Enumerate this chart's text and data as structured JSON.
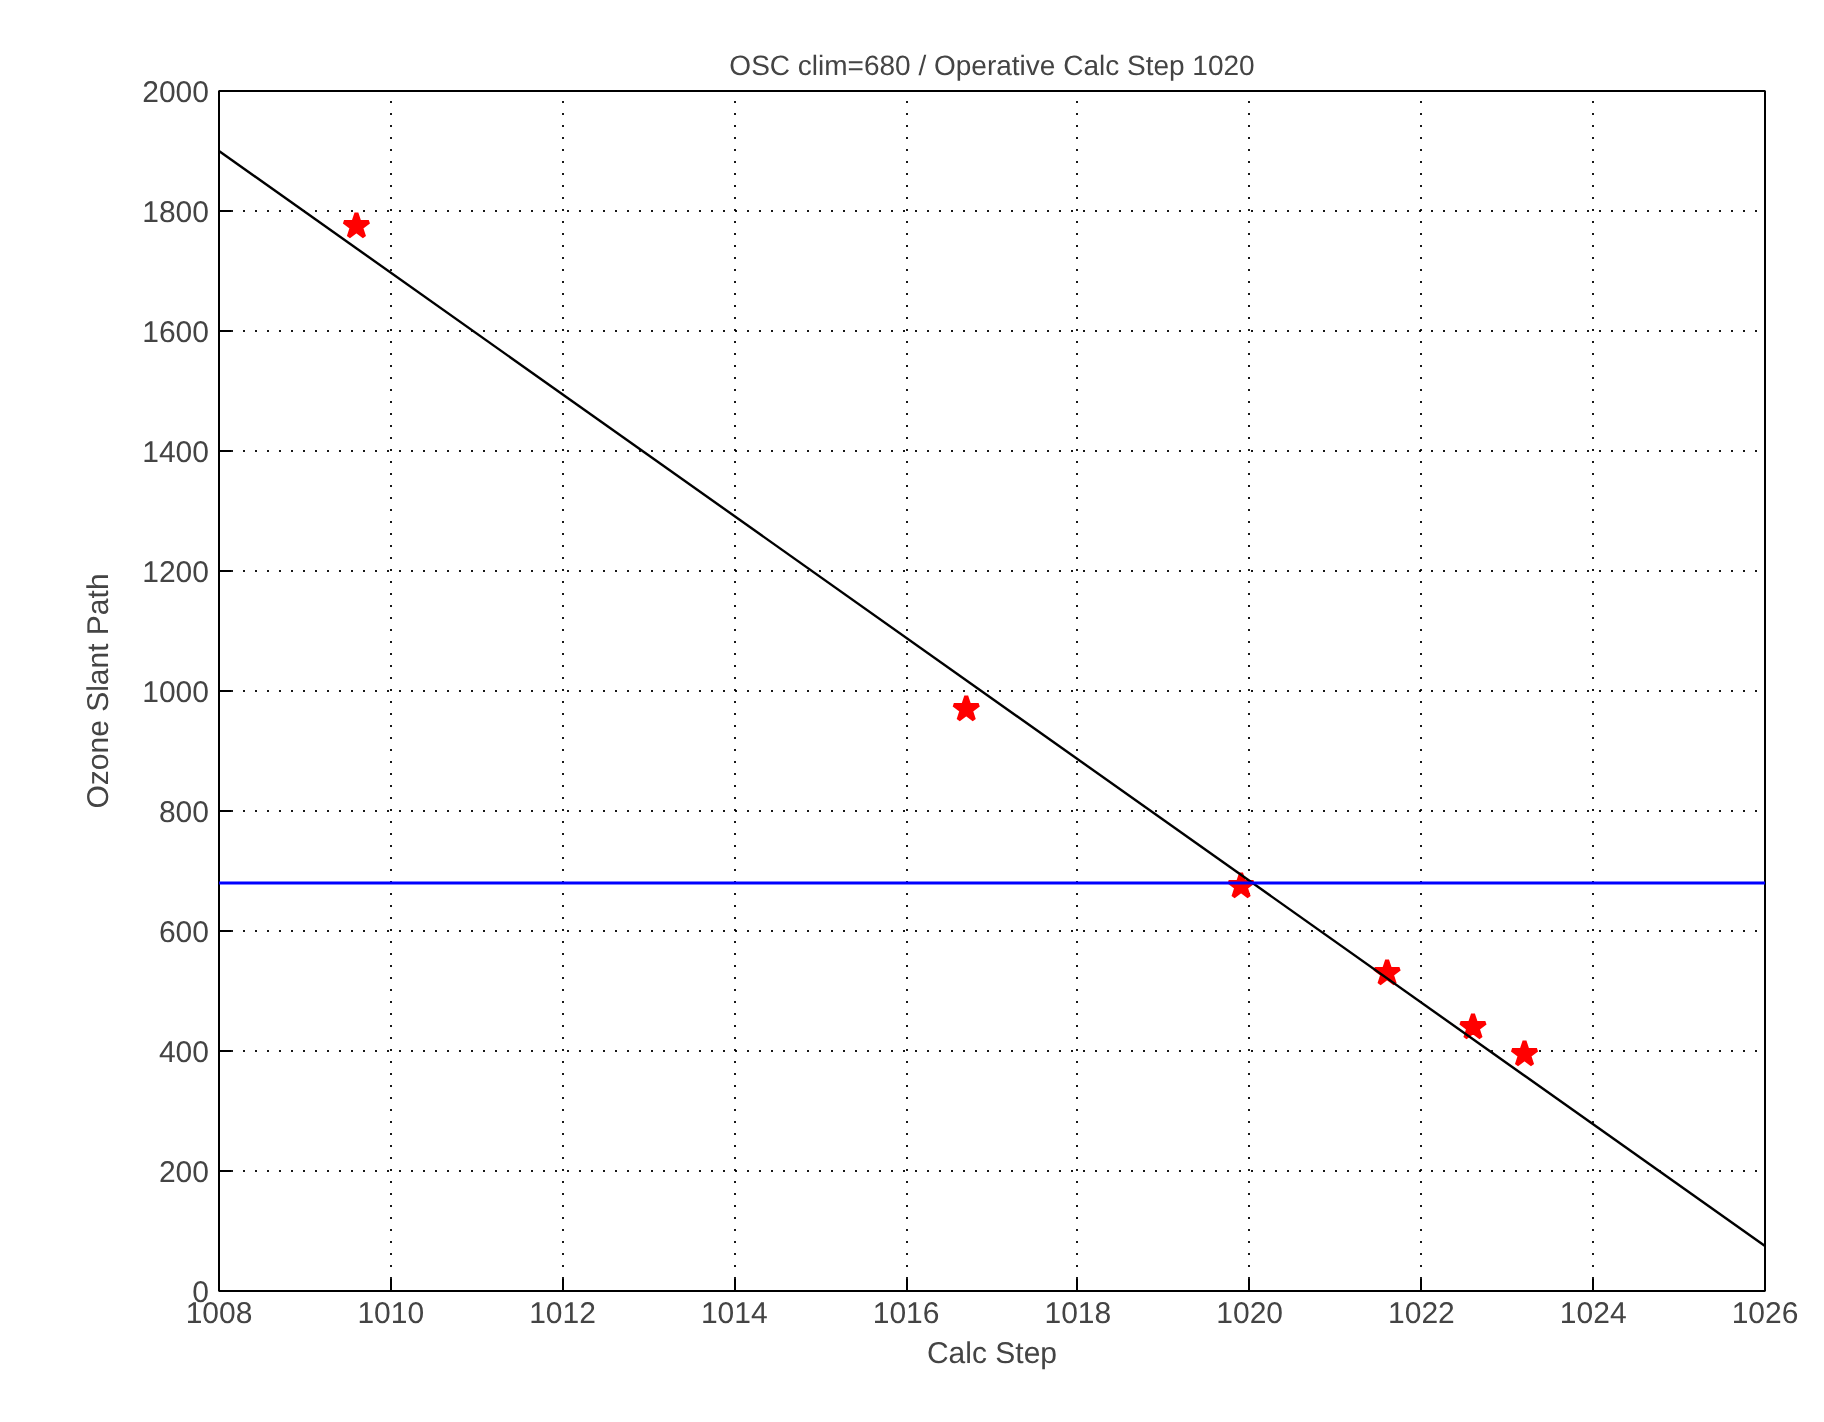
{
  "chart_data": {
    "type": "scatter",
    "title": "OSC clim=680 / Operative Calc Step 1020",
    "xlabel": "Calc Step",
    "ylabel": "Ozone Slant Path",
    "series": [
      {
        "marker": "star",
        "color": "#ff0000",
        "x": [
          1009.6,
          1016.7,
          1019.9,
          1021.6,
          1022.6,
          1023.2
        ],
        "values": [
          1775,
          970,
          675,
          530,
          440,
          395
        ]
      },
      {
        "type": "line",
        "marker": "none",
        "color": "#000000",
        "x": [
          1008,
          1026
        ],
        "values": [
          1900,
          75
        ]
      }
    ],
    "ref_lines": [
      {
        "axis": "y",
        "value": 680,
        "color": "#0000ff"
      }
    ],
    "xlim": [
      1008,
      1026
    ],
    "ylim": [
      0,
      2000
    ],
    "xticks": [
      1008,
      1010,
      1012,
      1014,
      1016,
      1018,
      1020,
      1022,
      1024,
      1026
    ],
    "yticks": [
      0,
      200,
      400,
      600,
      800,
      1000,
      1200,
      1400,
      1600,
      1800,
      2000
    ],
    "grid": true,
    "line_style": "solid"
  }
}
